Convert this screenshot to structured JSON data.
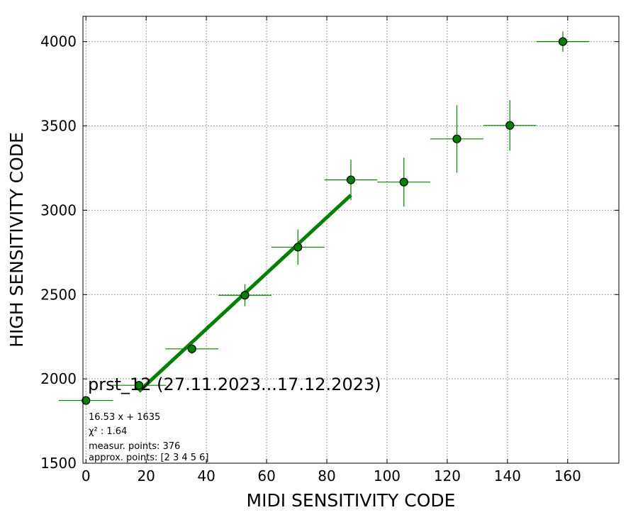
{
  "chart_data": {
    "type": "scatter",
    "title": "prst_12 (27.11.2023...17.12.2023)",
    "xlabel": "MIDI SENSITIVITY CODE",
    "ylabel": "HIGH SENSITIVITY CODE",
    "xlim": [
      -1,
      177
    ],
    "ylim": [
      1500,
      4150
    ],
    "xticks": [
      0,
      20,
      40,
      60,
      80,
      100,
      120,
      140,
      160
    ],
    "yticks": [
      1500,
      2000,
      2500,
      3000,
      3500,
      4000
    ],
    "grid": true,
    "colors": {
      "points": "#008000",
      "fit": "#008000",
      "marker_edge": "#000000"
    },
    "series": [
      {
        "points": [
          {
            "x": 0,
            "y": 1872,
            "xerr": 9,
            "yerr": 25
          },
          {
            "x": 17.6,
            "y": 1962,
            "xerr": 9,
            "yerr": 25
          },
          {
            "x": 35.2,
            "y": 2178,
            "xerr": 8.8,
            "yerr": 30
          },
          {
            "x": 52.8,
            "y": 2496,
            "xerr": 8.8,
            "yerr": 65
          },
          {
            "x": 70.4,
            "y": 2781,
            "xerr": 8.8,
            "yerr": 105
          },
          {
            "x": 88,
            "y": 3180,
            "xerr": 8.8,
            "yerr": 120
          },
          {
            "x": 105.6,
            "y": 3167,
            "xerr": 8.8,
            "yerr": 145
          },
          {
            "x": 123.2,
            "y": 3423,
            "xerr": 8.8,
            "yerr": 200
          },
          {
            "x": 140.8,
            "y": 3503,
            "xerr": 8.8,
            "yerr": 150
          },
          {
            "x": 158.4,
            "y": 4000,
            "xerr": 8.8,
            "yerr": 60
          }
        ]
      }
    ],
    "fit": {
      "slope": 16.53,
      "intercept": 1635,
      "x_range": [
        17.6,
        88
      ]
    },
    "annotations": [
      "16.53 x + 1635",
      "χ² : 1.64",
      "measur. points: 376",
      "approx. points: [2 3 4 5 6]"
    ]
  }
}
